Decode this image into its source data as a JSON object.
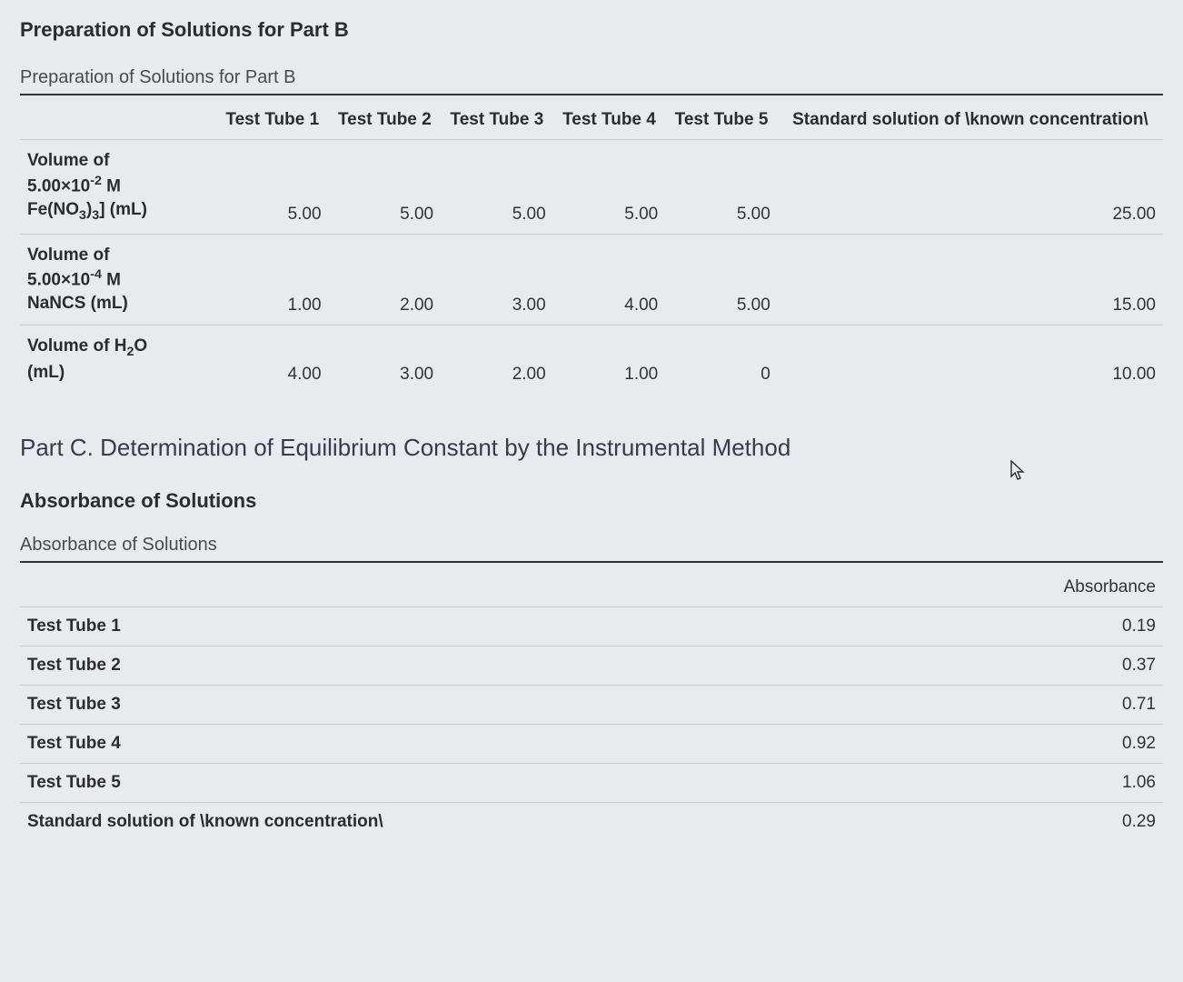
{
  "section_b": {
    "title": "Preparation of Solutions for Part B",
    "caption": "Preparation of Solutions for Part B",
    "columns": [
      "",
      "Test Tube 1",
      "Test Tube 2",
      "Test Tube 3",
      "Test Tube 4",
      "Test Tube 5",
      "Standard solution of \\known concentration\\"
    ],
    "rows": [
      {
        "label_html": "Volume of<br>5.00×10<sup>-2</sup> M<br>Fe(NO<sub>3</sub>)<sub>3</sub>] (mL)",
        "values": [
          "5.00",
          "5.00",
          "5.00",
          "5.00",
          "5.00",
          "25.00"
        ]
      },
      {
        "label_html": "Volume of<br>5.00×10<sup>-4</sup> M<br>NaNCS (mL)",
        "values": [
          "1.00",
          "2.00",
          "3.00",
          "4.00",
          "5.00",
          "15.00"
        ]
      },
      {
        "label_html": "Volume of H<sub>2</sub>O<br>(mL)",
        "values": [
          "4.00",
          "3.00",
          "2.00",
          "1.00",
          "0",
          "10.00"
        ]
      }
    ]
  },
  "part_c": {
    "heading": "Part C. Determination of Equilibrium Constant by the Instrumental Method",
    "subheading": "Absorbance of Solutions",
    "caption": "Absorbance of Solutions",
    "abs_col_header": "Absorbance",
    "rows": [
      {
        "label": "Test Tube 1",
        "value": "0.19"
      },
      {
        "label": "Test Tube 2",
        "value": "0.37"
      },
      {
        "label": "Test Tube 3",
        "value": "0.71"
      },
      {
        "label": "Test Tube 4",
        "value": "0.92"
      },
      {
        "label": "Test Tube 5",
        "value": "1.06"
      },
      {
        "label": "Standard solution of \\known concentration\\",
        "value": "0.29"
      }
    ]
  },
  "styling": {
    "background_color": "#e8ebee",
    "text_color": "#333336",
    "border_color": "#c9ccd0",
    "header_underline_color": "#333333",
    "font_family": "Arial",
    "title_fontsize_pt": 16,
    "body_fontsize_pt": 14,
    "part_c_heading_fontsize_pt": 20
  }
}
